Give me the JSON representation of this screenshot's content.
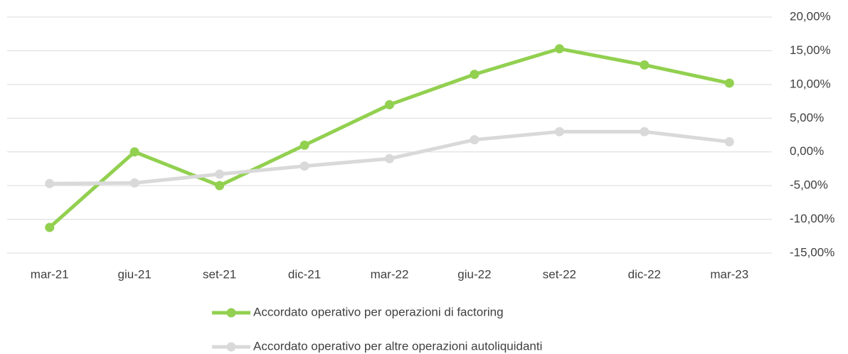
{
  "chart_data": {
    "type": "line",
    "categories": [
      "mar-21",
      "giu-21",
      "set-21",
      "dic-21",
      "mar-22",
      "giu-22",
      "set-22",
      "dic-22",
      "mar-23"
    ],
    "series": [
      {
        "name": "Accordato operativo per operazioni di factoring",
        "color": "#92d050",
        "values": [
          -11.2,
          0.0,
          -5.0,
          1.0,
          7.0,
          11.5,
          15.3,
          12.9,
          10.2
        ]
      },
      {
        "name": "Accordato operativo per altre operazioni autoliquidanti",
        "color": "#d9d9d9",
        "values": [
          -4.7,
          -4.6,
          -3.3,
          -2.1,
          -1.0,
          1.8,
          3.0,
          3.0,
          1.5
        ]
      }
    ],
    "ylim": [
      -15,
      20
    ],
    "yticks": [
      {
        "value": -15,
        "label": "-15,00%"
      },
      {
        "value": -10,
        "label": "-10,00%"
      },
      {
        "value": -5,
        "label": "-5,00%"
      },
      {
        "value": 0,
        "label": "0,00%"
      },
      {
        "value": 5,
        "label": "5,00%"
      },
      {
        "value": 10,
        "label": "10,00%"
      },
      {
        "value": 15,
        "label": "15,00%"
      },
      {
        "value": 20,
        "label": "20,00%"
      }
    ],
    "grid": true,
    "y_axis_side": "right",
    "legend": "bottom"
  }
}
